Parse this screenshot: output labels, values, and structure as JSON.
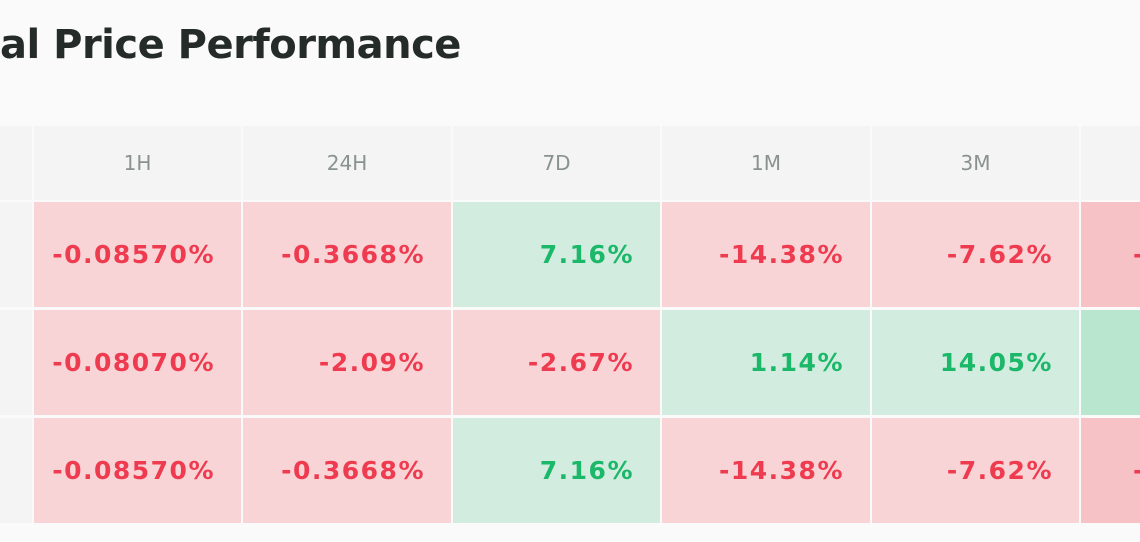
{
  "title": "al Price Performance",
  "header": {
    "columns": [
      "",
      "1H",
      "24H",
      "7D",
      "1M",
      "3M",
      ""
    ]
  },
  "rows": [
    {
      "cells": [
        {
          "text": "",
          "sign": "none"
        },
        {
          "text": "-0.08570%",
          "sign": "neg"
        },
        {
          "text": "-0.3668%",
          "sign": "neg"
        },
        {
          "text": "7.16%",
          "sign": "pos"
        },
        {
          "text": "-14.38%",
          "sign": "neg"
        },
        {
          "text": "-7.62%",
          "sign": "neg"
        },
        {
          "text": "-",
          "sign": "neg"
        }
      ]
    },
    {
      "cells": [
        {
          "text": "",
          "sign": "none"
        },
        {
          "text": "-0.08070%",
          "sign": "neg"
        },
        {
          "text": "-2.09%",
          "sign": "neg"
        },
        {
          "text": "-2.67%",
          "sign": "neg"
        },
        {
          "text": "1.14%",
          "sign": "pos"
        },
        {
          "text": "14.05%",
          "sign": "pos"
        },
        {
          "text": "",
          "sign": "pos"
        }
      ]
    },
    {
      "cells": [
        {
          "text": "",
          "sign": "none"
        },
        {
          "text": "-0.08570%",
          "sign": "neg"
        },
        {
          "text": "-0.3668%",
          "sign": "neg"
        },
        {
          "text": "7.16%",
          "sign": "pos"
        },
        {
          "text": "-14.38%",
          "sign": "neg"
        },
        {
          "text": "-7.62%",
          "sign": "neg"
        },
        {
          "text": "-",
          "sign": "neg"
        }
      ]
    }
  ],
  "colors": {
    "negative_text": "#ef3b4f",
    "positive_text": "#1bb86a",
    "negative_bg": "#f8d4d6",
    "positive_bg": "#d2ece0"
  }
}
